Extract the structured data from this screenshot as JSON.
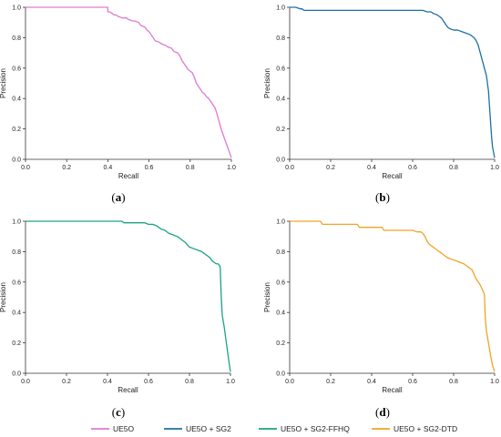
{
  "chart_data": [
    {
      "type": "line",
      "panel": "(a)",
      "panel_letter": "a",
      "xlabel": "Recall",
      "ylabel": "Precision",
      "xlim": [
        0,
        1
      ],
      "ylim": [
        0,
        1
      ],
      "xticks": [
        "0.0",
        "0.2",
        "0.4",
        "0.6",
        "0.8",
        "1.0"
      ],
      "yticks": [
        "0.0",
        "0.2",
        "0.4",
        "0.6",
        "0.8",
        "1.0"
      ],
      "series": [
        {
          "name": "UE5O",
          "color": "#e07ad0",
          "x": [
            0.0,
            0.4,
            0.4,
            0.41,
            0.42,
            0.43,
            0.44,
            0.45,
            0.47,
            0.49,
            0.5,
            0.52,
            0.53,
            0.55,
            0.56,
            0.58,
            0.59,
            0.6,
            0.61,
            0.62,
            0.63,
            0.65,
            0.66,
            0.68,
            0.69,
            0.71,
            0.72,
            0.74,
            0.75,
            0.76,
            0.77,
            0.78,
            0.79,
            0.8,
            0.81,
            0.82,
            0.83,
            0.84,
            0.85,
            0.86,
            0.87,
            0.88,
            0.89,
            0.9,
            0.91,
            0.92,
            0.93,
            0.95,
            1.0
          ],
          "y": [
            1.0,
            1.0,
            0.97,
            0.97,
            0.96,
            0.95,
            0.95,
            0.94,
            0.93,
            0.93,
            0.92,
            0.91,
            0.91,
            0.9,
            0.88,
            0.87,
            0.85,
            0.84,
            0.82,
            0.8,
            0.78,
            0.77,
            0.76,
            0.75,
            0.74,
            0.73,
            0.71,
            0.7,
            0.68,
            0.65,
            0.63,
            0.61,
            0.59,
            0.58,
            0.57,
            0.54,
            0.5,
            0.48,
            0.46,
            0.44,
            0.43,
            0.41,
            0.4,
            0.38,
            0.36,
            0.34,
            0.3,
            0.2,
            0.01
          ]
        }
      ]
    },
    {
      "type": "line",
      "panel": "(b)",
      "panel_letter": "b",
      "xlabel": "Recall",
      "ylabel": "Precision",
      "xlim": [
        0,
        1
      ],
      "ylim": [
        0,
        1
      ],
      "xticks": [
        "0.0",
        "0.2",
        "0.4",
        "0.6",
        "0.8",
        "1.0"
      ],
      "yticks": [
        "0.0",
        "0.2",
        "0.4",
        "0.6",
        "0.8",
        "1.0"
      ],
      "series": [
        {
          "name": "UE5O + SG2",
          "color": "#1f6fa5",
          "x": [
            0.0,
            0.03,
            0.05,
            0.06,
            0.07,
            0.3,
            0.6,
            0.65,
            0.67,
            0.69,
            0.7,
            0.72,
            0.73,
            0.74,
            0.75,
            0.76,
            0.77,
            0.78,
            0.8,
            0.82,
            0.84,
            0.86,
            0.88,
            0.89,
            0.9,
            0.91,
            0.92,
            0.93,
            0.94,
            0.95,
            0.96,
            0.97,
            0.975,
            0.98,
            0.985,
            0.99,
            1.0
          ],
          "y": [
            1.0,
            1.0,
            0.99,
            0.99,
            0.98,
            0.98,
            0.98,
            0.98,
            0.97,
            0.97,
            0.96,
            0.95,
            0.94,
            0.93,
            0.91,
            0.89,
            0.87,
            0.86,
            0.85,
            0.85,
            0.84,
            0.83,
            0.82,
            0.81,
            0.8,
            0.78,
            0.75,
            0.7,
            0.65,
            0.6,
            0.55,
            0.45,
            0.35,
            0.25,
            0.15,
            0.08,
            0.01
          ]
        }
      ]
    },
    {
      "type": "line",
      "panel": "(c)",
      "panel_letter": "c",
      "xlabel": "Recall",
      "ylabel": "Precision",
      "xlim": [
        0,
        1
      ],
      "ylim": [
        0,
        1
      ],
      "xticks": [
        "0.0",
        "0.2",
        "0.4",
        "0.6",
        "0.8",
        "1.0"
      ],
      "yticks": [
        "0.0",
        "0.2",
        "0.4",
        "0.6",
        "0.8",
        "1.0"
      ],
      "series": [
        {
          "name": "UE5O + SG2-FFHQ",
          "color": "#1aa387",
          "x": [
            0.0,
            0.47,
            0.48,
            0.58,
            0.6,
            0.62,
            0.64,
            0.65,
            0.66,
            0.68,
            0.7,
            0.72,
            0.74,
            0.76,
            0.78,
            0.8,
            0.82,
            0.84,
            0.86,
            0.87,
            0.89,
            0.9,
            0.91,
            0.92,
            0.93,
            0.94,
            0.95,
            0.955,
            0.96,
            0.97,
            0.98,
            0.99,
            1.0
          ],
          "y": [
            1.0,
            1.0,
            0.99,
            0.99,
            0.98,
            0.98,
            0.97,
            0.96,
            0.95,
            0.94,
            0.92,
            0.91,
            0.9,
            0.88,
            0.86,
            0.83,
            0.82,
            0.81,
            0.8,
            0.79,
            0.77,
            0.76,
            0.74,
            0.73,
            0.72,
            0.72,
            0.7,
            0.5,
            0.38,
            0.3,
            0.2,
            0.1,
            0.01
          ]
        }
      ]
    },
    {
      "type": "line",
      "panel": "(d)",
      "panel_letter": "d",
      "xlabel": "Recall",
      "ylabel": "Precision",
      "xlim": [
        0,
        1
      ],
      "ylim": [
        0,
        1
      ],
      "xticks": [
        "0.0",
        "0.2",
        "0.4",
        "0.6",
        "0.8",
        "1.0"
      ],
      "yticks": [
        "0.0",
        "0.2",
        "0.4",
        "0.6",
        "0.8",
        "1.0"
      ],
      "series": [
        {
          "name": "UE5O + SG2-DTD",
          "color": "#f0a32a",
          "x": [
            0.0,
            0.15,
            0.16,
            0.33,
            0.34,
            0.45,
            0.46,
            0.6,
            0.62,
            0.64,
            0.65,
            0.66,
            0.67,
            0.68,
            0.7,
            0.72,
            0.74,
            0.75,
            0.77,
            0.79,
            0.81,
            0.83,
            0.85,
            0.87,
            0.89,
            0.9,
            0.91,
            0.92,
            0.93,
            0.94,
            0.95,
            0.955,
            0.96,
            0.97,
            0.98,
            0.99,
            1.0
          ],
          "y": [
            1.0,
            1.0,
            0.98,
            0.98,
            0.96,
            0.96,
            0.94,
            0.94,
            0.93,
            0.93,
            0.92,
            0.9,
            0.87,
            0.85,
            0.83,
            0.81,
            0.79,
            0.78,
            0.76,
            0.75,
            0.74,
            0.73,
            0.72,
            0.7,
            0.68,
            0.65,
            0.62,
            0.6,
            0.58,
            0.55,
            0.52,
            0.35,
            0.28,
            0.2,
            0.12,
            0.05,
            0.01
          ]
        }
      ]
    }
  ],
  "legend": {
    "placement": "bottom",
    "entries": [
      {
        "name": "UE5O",
        "color": "#e07ad0"
      },
      {
        "name": "UE5O + SG2",
        "color": "#1f6fa5"
      },
      {
        "name": "UE5O + SG2-FFHQ",
        "color": "#1aa387"
      },
      {
        "name": "UE5O + SG2-DTD",
        "color": "#f0a32a"
      }
    ]
  }
}
